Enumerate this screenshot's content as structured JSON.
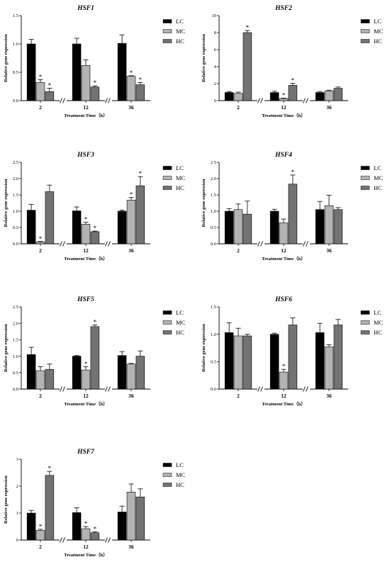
{
  "chart_data": [
    {
      "type": "bar",
      "title": "HSF1",
      "xlabel": "Treatment Time（h）",
      "ylabel": "Relative gene expression",
      "categories": [
        "2",
        "12",
        "36"
      ],
      "yticks": [
        "0.0",
        "0.5",
        "1.0",
        "1.5"
      ],
      "ylim": [
        0,
        1.5
      ],
      "legend": "right",
      "series": [
        {
          "name": "LC",
          "values": [
            1.0,
            1.0,
            1.01
          ],
          "errors": [
            0.08,
            0.1,
            0.15
          ],
          "sig": [
            false,
            false,
            false
          ]
        },
        {
          "name": "MC",
          "values": [
            0.32,
            0.62,
            0.43
          ],
          "errors": [
            0.05,
            0.1,
            0.01
          ],
          "sig": [
            true,
            false,
            true
          ]
        },
        {
          "name": "HC",
          "values": [
            0.16,
            0.24,
            0.28
          ],
          "errors": [
            0.06,
            0.02,
            0.04
          ],
          "sig": [
            true,
            true,
            true
          ]
        }
      ]
    },
    {
      "type": "bar",
      "title": "HSF2",
      "xlabel": "Treatment Time（h）",
      "ylabel": "Relative gene expression",
      "categories": [
        "2",
        "12",
        "36"
      ],
      "yticks": [
        "0",
        "2",
        "4",
        "6",
        "8",
        "10"
      ],
      "ylim": [
        0,
        10
      ],
      "legend": "right",
      "series": [
        {
          "name": "LC",
          "values": [
            0.95,
            0.95,
            0.95
          ],
          "errors": [
            0.1,
            0.15,
            0.12
          ],
          "sig": [
            false,
            false,
            false
          ]
        },
        {
          "name": "MC",
          "values": [
            0.85,
            0.25,
            1.15
          ],
          "errors": [
            0.15,
            0.05,
            0.08
          ],
          "sig": [
            false,
            true,
            false
          ]
        },
        {
          "name": "HC",
          "values": [
            8.0,
            1.8,
            1.45
          ],
          "errors": [
            0.25,
            0.25,
            0.15
          ],
          "sig": [
            true,
            true,
            false
          ]
        }
      ]
    },
    {
      "type": "bar",
      "title": "HSF3",
      "xlabel": "Treatment Time（h）",
      "ylabel": "Relative gene expression",
      "categories": [
        "2",
        "12",
        "36"
      ],
      "yticks": [
        "0.0",
        "0.5",
        "1.0",
        "1.5",
        "2.0",
        "2.5"
      ],
      "ylim": [
        0,
        2.5
      ],
      "legend": "right",
      "series": [
        {
          "name": "LC",
          "values": [
            1.03,
            1.01,
            1.0
          ],
          "errors": [
            0.18,
            0.12,
            0.03
          ],
          "sig": [
            false,
            false,
            false
          ]
        },
        {
          "name": "MC",
          "values": [
            0.05,
            0.6,
            1.34
          ],
          "errors": [
            0.02,
            0.06,
            0.08
          ],
          "sig": [
            true,
            true,
            true
          ]
        },
        {
          "name": "HC",
          "values": [
            1.6,
            0.37,
            1.78
          ],
          "errors": [
            0.2,
            0.02,
            0.28
          ],
          "sig": [
            false,
            true,
            true
          ]
        }
      ]
    },
    {
      "type": "bar",
      "title": "HSF4",
      "xlabel": "Treatment Time（h）",
      "ylabel": "Relative gene expression",
      "categories": [
        "2",
        "12",
        "36"
      ],
      "yticks": [
        "0.0",
        "0.5",
        "1.0",
        "1.5",
        "2.0",
        "2.5"
      ],
      "ylim": [
        0,
        2.5
      ],
      "legend": "right",
      "series": [
        {
          "name": "LC",
          "values": [
            1.0,
            1.0,
            1.05
          ],
          "errors": [
            0.08,
            0.06,
            0.25
          ],
          "sig": [
            false,
            false,
            false
          ]
        },
        {
          "name": "MC",
          "values": [
            1.05,
            0.64,
            1.17
          ],
          "errors": [
            0.17,
            0.12,
            0.32
          ],
          "sig": [
            false,
            false,
            false
          ]
        },
        {
          "name": "HC",
          "values": [
            0.91,
            1.83,
            1.05
          ],
          "errors": [
            0.4,
            0.28,
            0.06
          ],
          "sig": [
            false,
            true,
            false
          ]
        }
      ]
    },
    {
      "type": "bar",
      "title": "HSF5",
      "xlabel": "Treatment Time（h）",
      "ylabel": "Relative gene expression",
      "categories": [
        "2",
        "12",
        "36"
      ],
      "yticks": [
        "0.0",
        "0.5",
        "1.0",
        "1.5",
        "2.0",
        "2.5"
      ],
      "ylim": [
        0,
        2.5
      ],
      "legend": "right",
      "series": [
        {
          "name": "LC",
          "values": [
            1.05,
            1.0,
            1.02
          ],
          "errors": [
            0.22,
            0.02,
            0.12
          ],
          "sig": [
            false,
            false,
            false
          ]
        },
        {
          "name": "MC",
          "values": [
            0.56,
            0.58,
            0.76
          ],
          "errors": [
            0.12,
            0.1,
            0.02
          ],
          "sig": [
            false,
            true,
            false
          ]
        },
        {
          "name": "HC",
          "values": [
            0.6,
            1.9,
            1.0
          ],
          "errors": [
            0.16,
            0.05,
            0.16
          ],
          "sig": [
            false,
            true,
            false
          ]
        }
      ]
    },
    {
      "type": "bar",
      "title": "HSF6",
      "xlabel": "Treatment Time（h）",
      "ylabel": "Relative gene expression",
      "categories": [
        "2",
        "12",
        "36"
      ],
      "yticks": [
        "0.0",
        "0.5",
        "1.0",
        "1.5"
      ],
      "ylim": [
        0,
        1.5
      ],
      "legend": "right",
      "series": [
        {
          "name": "LC",
          "values": [
            1.03,
            1.0,
            1.03
          ],
          "errors": [
            0.18,
            0.02,
            0.17
          ],
          "sig": [
            false,
            false,
            false
          ]
        },
        {
          "name": "MC",
          "values": [
            0.97,
            0.31,
            0.77
          ],
          "errors": [
            0.14,
            0.05,
            0.04
          ],
          "sig": [
            false,
            true,
            false
          ]
        },
        {
          "name": "HC",
          "values": [
            0.97,
            1.17,
            1.17
          ],
          "errors": [
            0.03,
            0.13,
            0.1
          ],
          "sig": [
            false,
            false,
            false
          ]
        }
      ]
    },
    {
      "type": "bar",
      "title": "HSF7",
      "xlabel": "Treatment Time（h）",
      "ylabel": "Relative gene expression",
      "categories": [
        "2",
        "12",
        "36"
      ],
      "yticks": [
        "0",
        "1",
        "2",
        "3"
      ],
      "ylim": [
        0,
        3
      ],
      "legend": "right",
      "series": [
        {
          "name": "LC",
          "values": [
            1.0,
            1.02,
            1.04
          ],
          "errors": [
            0.1,
            0.18,
            0.22
          ],
          "sig": [
            false,
            false,
            false
          ]
        },
        {
          "name": "MC",
          "values": [
            0.36,
            0.42,
            1.78
          ],
          "errors": [
            0.04,
            0.08,
            0.3
          ],
          "sig": [
            true,
            true,
            false
          ]
        },
        {
          "name": "HC",
          "values": [
            2.4,
            0.27,
            1.6
          ],
          "errors": [
            0.15,
            0.03,
            0.3
          ],
          "sig": [
            true,
            true,
            false
          ]
        }
      ]
    }
  ],
  "series_colors": {
    "LC": "#000000",
    "MC": "#b3b3b3",
    "HC": "#737373"
  },
  "significance_mark": "*"
}
